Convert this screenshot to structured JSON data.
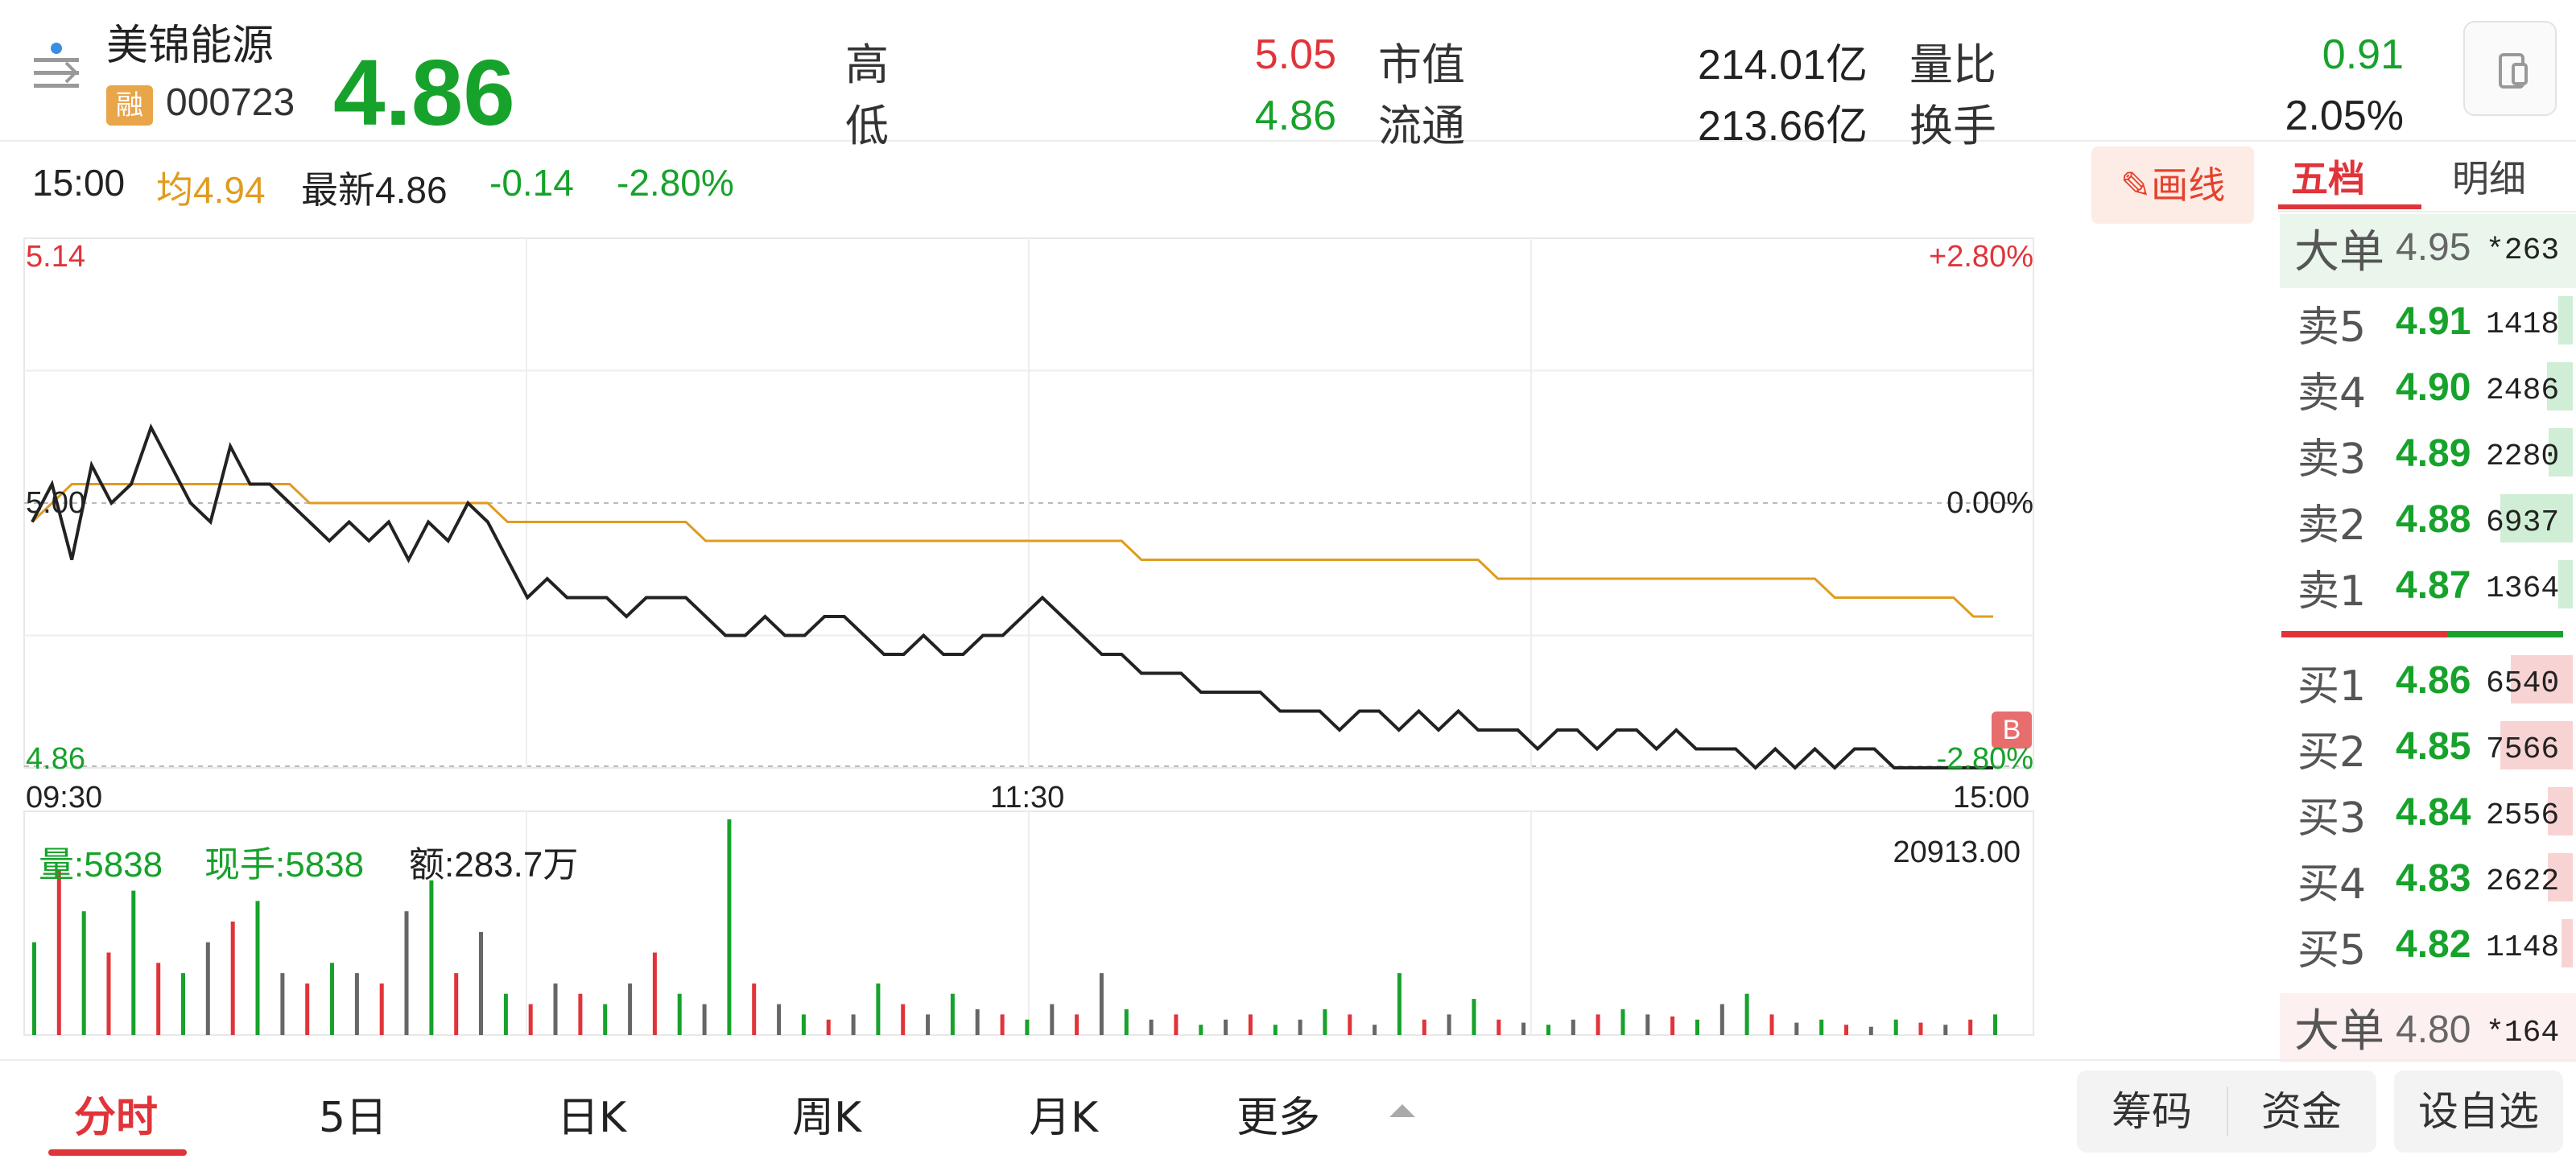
{
  "header": {
    "stock_name": "美锦能源",
    "badge": "融",
    "code": "000723",
    "price": "4.86",
    "stats": [
      {
        "label": "高",
        "value": "5.05",
        "color": "#e0343a"
      },
      {
        "label": "低",
        "value": "4.86",
        "color": "#17a22b"
      },
      {
        "label": "市值",
        "value": "214.01亿",
        "color": "#222222"
      },
      {
        "label": "流通",
        "value": "213.66亿",
        "color": "#222222"
      },
      {
        "label": "量比",
        "value": "0.91",
        "color": "#17a22b"
      },
      {
        "label": "换手",
        "value": "2.05%",
        "color": "#222222"
      }
    ]
  },
  "info": {
    "time": "15:00",
    "avg_label": "均4.94",
    "latest_label": "最新4.86",
    "change": "-0.14",
    "change_pct": "-2.80%",
    "draw_button": "画线"
  },
  "chart": {
    "y_top": "5.14",
    "y_mid": "5.00",
    "y_bottom": "4.86",
    "pct_top": "+2.80%",
    "pct_mid": "0.00%",
    "pct_bottom": "-2.80%",
    "x_labels": [
      "09:30",
      "11:30",
      "15:00"
    ],
    "b_marker": "B",
    "volume_label": "量:5838",
    "hand_label": "现手:5838",
    "amount_label": "额:283.7万",
    "volume_max": "20913.00"
  },
  "chart_data": {
    "type": "line",
    "title": "",
    "xlabel": "",
    "ylabel": "",
    "ylim": [
      4.86,
      5.14
    ],
    "x_ticks": [
      "09:30",
      "11:30",
      "15:00"
    ],
    "series": [
      {
        "name": "",
        "color": "#222222",
        "values": [
          4.99,
          5.01,
          4.97,
          5.02,
          5.0,
          5.01,
          5.04,
          5.02,
          5.0,
          4.99,
          5.03,
          5.01,
          5.01,
          5.0,
          4.99,
          4.98,
          4.99,
          4.98,
          4.99,
          4.97,
          4.99,
          4.98,
          5.0,
          4.99,
          4.97,
          4.95,
          4.96,
          4.95,
          4.95,
          4.95,
          4.94,
          4.95,
          4.95,
          4.95,
          4.94,
          4.93,
          4.93,
          4.94,
          4.93,
          4.93,
          4.94,
          4.94,
          4.93,
          4.92,
          4.92,
          4.93,
          4.92,
          4.92,
          4.93,
          4.93,
          4.94,
          4.95,
          4.94,
          4.93,
          4.92,
          4.92,
          4.91,
          4.91,
          4.91,
          4.9,
          4.9,
          4.9,
          4.9,
          4.89,
          4.89,
          4.89,
          4.88,
          4.89,
          4.89,
          4.88,
          4.89,
          4.88,
          4.89,
          4.88,
          4.88,
          4.88,
          4.87,
          4.88,
          4.88,
          4.87,
          4.88,
          4.88,
          4.87,
          4.88,
          4.87,
          4.87,
          4.87,
          4.86,
          4.87,
          4.86,
          4.87,
          4.86,
          4.87,
          4.87,
          4.86,
          4.86,
          4.86,
          4.86,
          4.86,
          4.86
        ]
      },
      {
        "name": "",
        "color": "#e09b20",
        "values": [
          4.99,
          5.0,
          5.01,
          5.01,
          5.01,
          5.01,
          5.01,
          5.01,
          5.01,
          5.01,
          5.01,
          5.01,
          5.01,
          5.01,
          5.0,
          5.0,
          5.0,
          5.0,
          5.0,
          5.0,
          5.0,
          5.0,
          5.0,
          5.0,
          4.99,
          4.99,
          4.99,
          4.99,
          4.99,
          4.99,
          4.99,
          4.99,
          4.99,
          4.99,
          4.98,
          4.98,
          4.98,
          4.98,
          4.98,
          4.98,
          4.98,
          4.98,
          4.98,
          4.98,
          4.98,
          4.98,
          4.98,
          4.98,
          4.98,
          4.98,
          4.98,
          4.98,
          4.98,
          4.98,
          4.98,
          4.98,
          4.97,
          4.97,
          4.97,
          4.97,
          4.97,
          4.97,
          4.97,
          4.97,
          4.97,
          4.97,
          4.97,
          4.97,
          4.97,
          4.97,
          4.97,
          4.97,
          4.97,
          4.97,
          4.96,
          4.96,
          4.96,
          4.96,
          4.96,
          4.96,
          4.96,
          4.96,
          4.96,
          4.96,
          4.96,
          4.96,
          4.96,
          4.96,
          4.96,
          4.96,
          4.96,
          4.95,
          4.95,
          4.95,
          4.95,
          4.95,
          4.95,
          4.95,
          4.94,
          4.94
        ]
      }
    ],
    "volume_ylim": [
      0,
      20913
    ],
    "volume": [
      9000,
      16000,
      12000,
      8000,
      14000,
      7000,
      6000,
      9000,
      11000,
      13000,
      6000,
      5000,
      7000,
      6000,
      5000,
      12000,
      15000,
      6000,
      10000,
      4000,
      3000,
      5000,
      4000,
      3000,
      5000,
      8000,
      4000,
      3000,
      20913,
      5000,
      3000,
      2000,
      1500,
      2000,
      5000,
      3000,
      2000,
      4000,
      2500,
      2000,
      1500,
      3000,
      2000,
      6000,
      2500,
      1500,
      2000,
      1000,
      1500,
      2000,
      1000,
      1500,
      2500,
      2000,
      1000,
      6000,
      1500,
      2000,
      3500,
      1500,
      1200,
      1000,
      1500,
      2000,
      2500,
      2000,
      1800,
      1500,
      3000,
      4000,
      2000,
      1200,
      1500,
      1000,
      800,
      1500,
      1200,
      1000,
      1500,
      2000
    ],
    "volume_colors": [
      "g",
      "r",
      "g",
      "r",
      "g",
      "r",
      "g",
      "k",
      "r",
      "g",
      "k",
      "r",
      "g",
      "k",
      "r",
      "k",
      "g",
      "r",
      "k",
      "g",
      "r",
      "k",
      "r",
      "g",
      "k",
      "r",
      "g",
      "k",
      "g",
      "r",
      "k",
      "g",
      "r",
      "k",
      "g",
      "r",
      "k",
      "g",
      "k",
      "r",
      "g",
      "k",
      "r",
      "k",
      "g",
      "k",
      "r",
      "g",
      "k",
      "r",
      "g",
      "k",
      "g",
      "r",
      "k",
      "g",
      "r",
      "k",
      "g",
      "r",
      "k",
      "g",
      "k",
      "r",
      "g",
      "k",
      "r",
      "g",
      "k",
      "g",
      "r",
      "k",
      "g",
      "r",
      "k",
      "g",
      "r",
      "k",
      "r",
      "g"
    ]
  },
  "order_book": {
    "tabs": [
      "五档",
      "明细"
    ],
    "big_sell": {
      "label": "大单",
      "price": "4.95",
      "vol": "*263"
    },
    "sells": [
      {
        "label": "卖5",
        "price": "4.91",
        "vol": "1418",
        "bar": 0.2
      },
      {
        "label": "卖4",
        "price": "4.90",
        "vol": "2486",
        "bar": 0.36
      },
      {
        "label": "卖3",
        "price": "4.89",
        "vol": "2280",
        "bar": 0.33
      },
      {
        "label": "卖2",
        "price": "4.88",
        "vol": "6937",
        "bar": 1.0
      },
      {
        "label": "卖1",
        "price": "4.87",
        "vol": "1364",
        "bar": 0.2
      }
    ],
    "buys": [
      {
        "label": "买1",
        "price": "4.86",
        "vol": "6540",
        "bar": 0.86
      },
      {
        "label": "买2",
        "price": "4.85",
        "vol": "7566",
        "bar": 1.0
      },
      {
        "label": "买3",
        "price": "4.84",
        "vol": "2556",
        "bar": 0.34
      },
      {
        "label": "买4",
        "price": "4.83",
        "vol": "2622",
        "bar": 0.35
      },
      {
        "label": "买5",
        "price": "4.82",
        "vol": "1148",
        "bar": 0.15
      }
    ],
    "big_buy": {
      "label": "大单",
      "price": "4.80",
      "vol": "*164"
    }
  },
  "bottom_nav": {
    "tabs": [
      "分时",
      "5日",
      "日K",
      "周K",
      "月K",
      "更多"
    ],
    "chip": "筹码",
    "fund": "资金",
    "add_watch": "设自选"
  }
}
